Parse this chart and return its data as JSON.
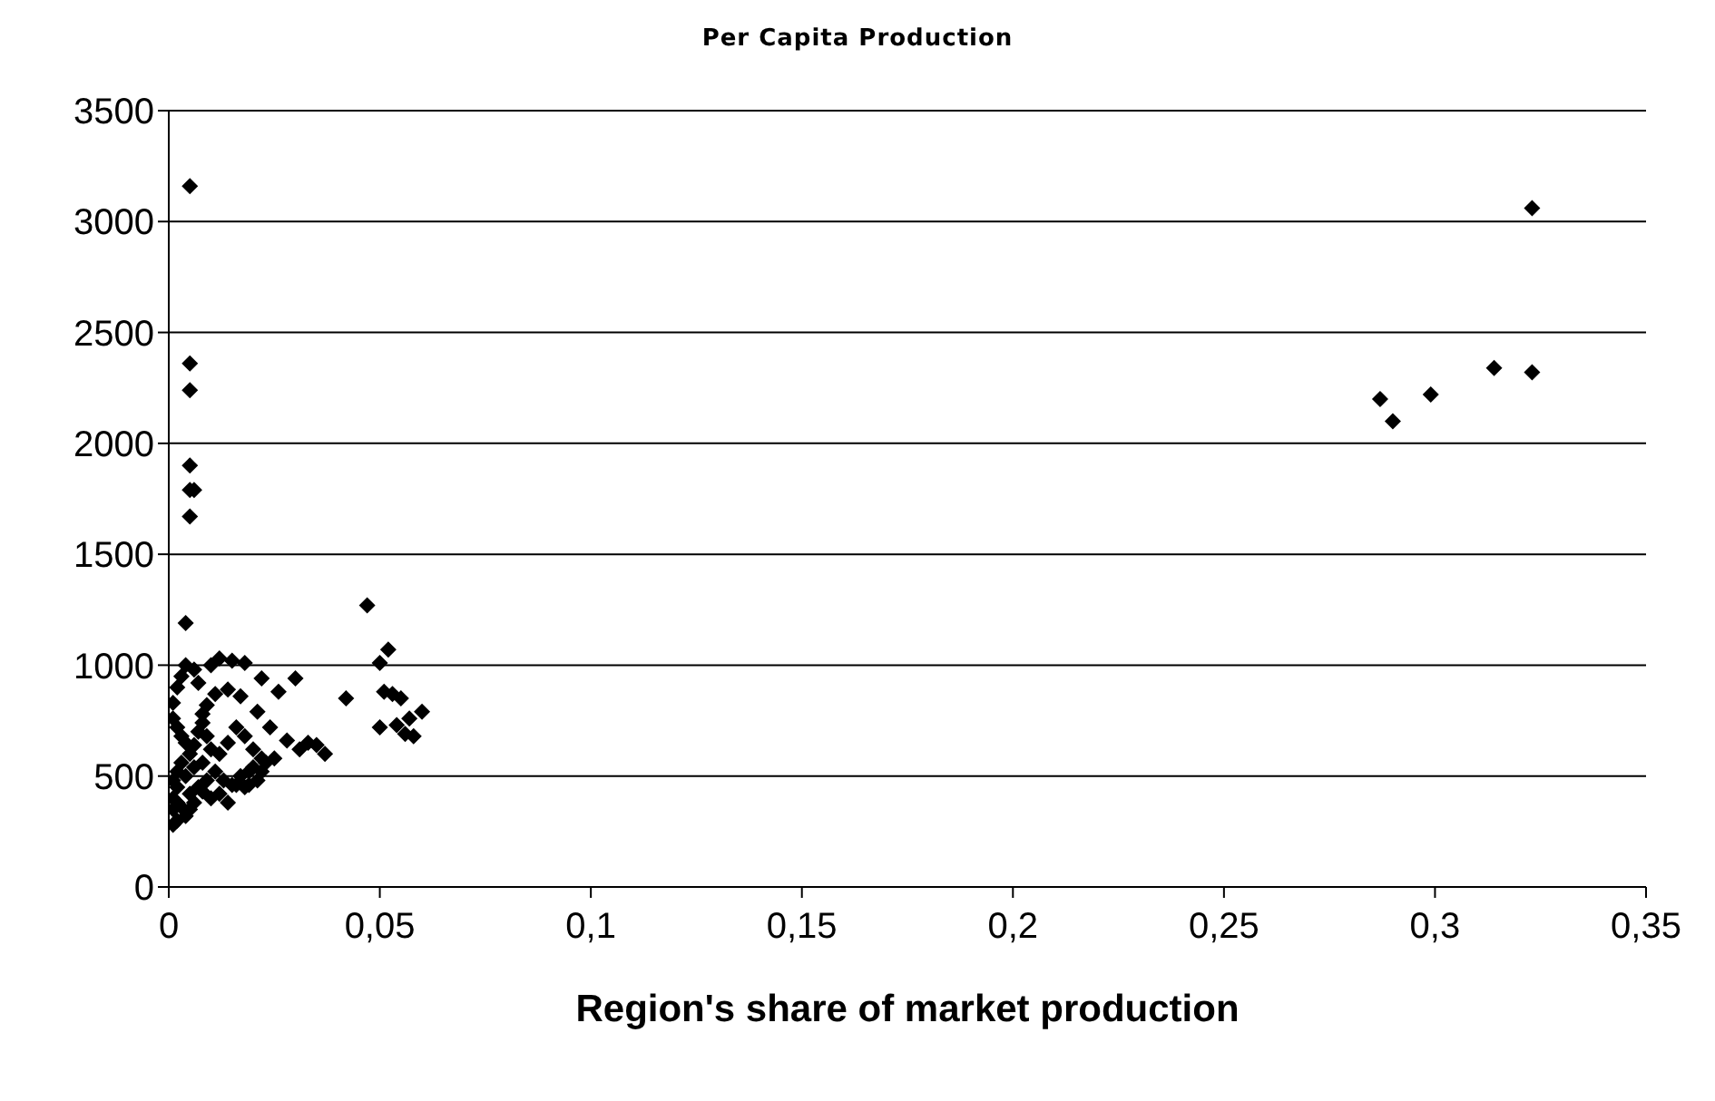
{
  "chart_data": {
    "type": "scatter",
    "title": "Per Capita Production",
    "xlabel": "Region's share of market production",
    "marker": "diamond",
    "grid": "y",
    "xlim": [
      0,
      0.35
    ],
    "xticks": [
      {
        "value": 0,
        "label": "0"
      },
      {
        "value": 0.05,
        "label": "0,05"
      },
      {
        "value": 0.1,
        "label": "0,1"
      },
      {
        "value": 0.15,
        "label": "0,15"
      },
      {
        "value": 0.2,
        "label": "0,2"
      },
      {
        "value": 0.25,
        "label": "0,25"
      },
      {
        "value": 0.3,
        "label": "0,3"
      },
      {
        "value": 0.35,
        "label": "0,35"
      }
    ],
    "ylim": [
      0,
      3500
    ],
    "yticks": [
      0,
      500,
      1000,
      1500,
      2000,
      2500,
      3000,
      3500
    ],
    "series": [
      {
        "color": "#000000",
        "x": [
          0.005,
          0.005,
          0.005,
          0.005,
          0.005,
          0.006,
          0.005,
          0.004,
          0.047,
          0.052,
          0.05,
          0.051,
          0.053,
          0.055,
          0.06,
          0.057,
          0.054,
          0.05,
          0.056,
          0.058,
          0.042,
          0.037,
          0.031,
          0.028,
          0.033,
          0.025,
          0.022,
          0.02,
          0.019,
          0.012,
          0.01,
          0.015,
          0.018,
          0.022,
          0.026,
          0.03,
          0.035,
          0.024,
          0.021,
          0.017,
          0.014,
          0.011,
          0.009,
          0.008,
          0.007,
          0.006,
          0.004,
          0.003,
          0.002,
          0.001,
          0.001,
          0.002,
          0.003,
          0.004,
          0.005,
          0.006,
          0.007,
          0.008,
          0.009,
          0.01,
          0.012,
          0.014,
          0.016,
          0.018,
          0.02,
          0.022,
          0.003,
          0.002,
          0.001,
          0.002,
          0.004,
          0.006,
          0.008,
          0.011,
          0.013,
          0.015,
          0.017,
          0.019,
          0.021,
          0.023,
          0.001,
          0.002,
          0.003,
          0.005,
          0.007,
          0.009,
          0.012,
          0.016,
          0.004,
          0.002,
          0.001,
          0.006,
          0.01,
          0.014,
          0.018,
          0.008,
          0.005,
          0.001
        ],
        "values": [
          3160,
          2360,
          2240,
          1900,
          1790,
          1790,
          1670,
          1190,
          1270,
          1070,
          1010,
          880,
          870,
          850,
          790,
          760,
          730,
          720,
          690,
          680,
          850,
          600,
          620,
          660,
          650,
          580,
          520,
          540,
          460,
          1030,
          1000,
          1020,
          1010,
          940,
          880,
          940,
          640,
          720,
          790,
          860,
          890,
          870,
          820,
          780,
          920,
          980,
          1000,
          950,
          900,
          830,
          760,
          720,
          680,
          650,
          600,
          640,
          700,
          740,
          680,
          620,
          600,
          650,
          720,
          680,
          620,
          580,
          560,
          520,
          480,
          450,
          500,
          540,
          560,
          520,
          480,
          460,
          500,
          520,
          480,
          560,
          400,
          380,
          360,
          420,
          450,
          480,
          420,
          460,
          320,
          300,
          280,
          380,
          400,
          380,
          450,
          430,
          350,
          350
        ]
      },
      {
        "color": "#000000",
        "x": [
          0.287,
          0.29,
          0.299,
          0.314,
          0.323,
          0.323
        ],
        "values": [
          2200,
          2100,
          2220,
          2340,
          3060,
          2320
        ]
      }
    ]
  }
}
